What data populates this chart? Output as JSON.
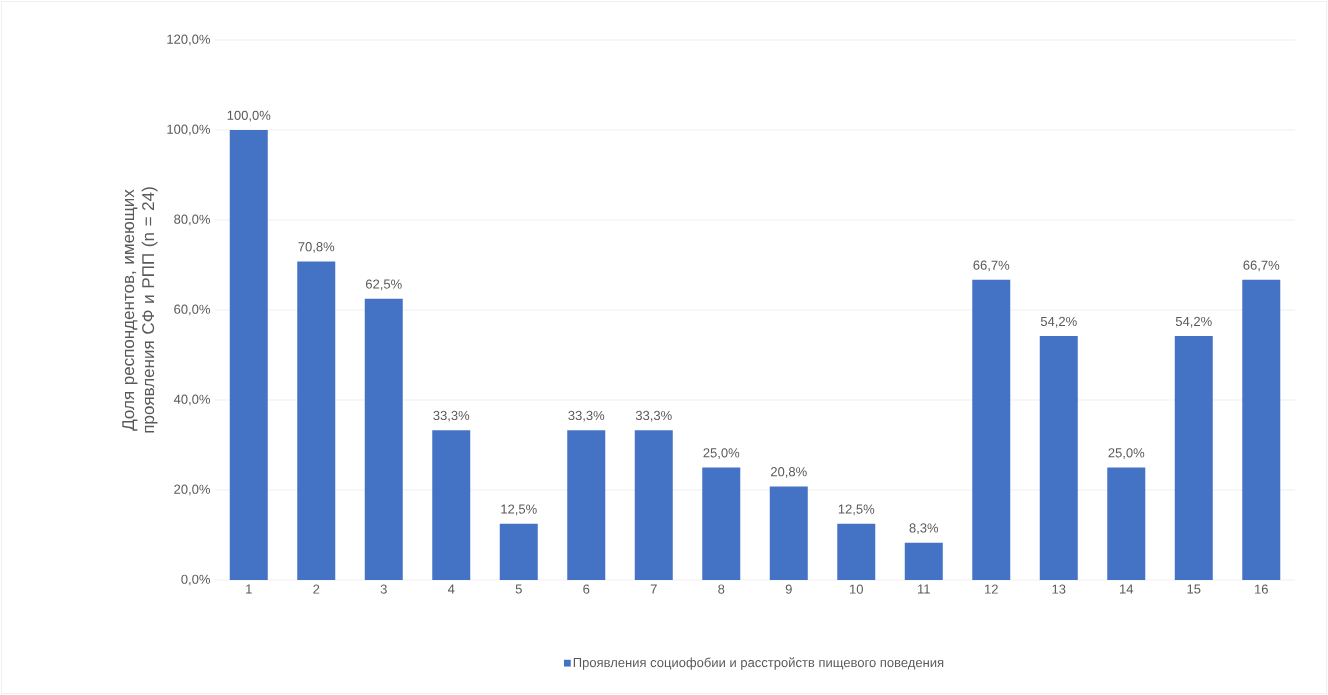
{
  "chart_data": {
    "type": "bar",
    "ylabel": "Доля респондентов, имеющих проявления СФ и РПП (n = 24)",
    "categories": [
      "1",
      "2",
      "3",
      "4",
      "5",
      "6",
      "7",
      "8",
      "9",
      "10",
      "11",
      "12",
      "13",
      "14",
      "15",
      "16"
    ],
    "series": [
      {
        "name": "Проявления социофобии и расстройств пищевого поведения",
        "color": "#4472c4",
        "values": [
          100.0,
          70.8,
          62.5,
          33.3,
          12.5,
          33.3,
          33.3,
          25.0,
          20.8,
          12.5,
          8.3,
          66.7,
          54.2,
          25.0,
          54.2,
          66.7
        ],
        "value_labels": [
          "100,0%",
          "70,8%",
          "62,5%",
          "33,3%",
          "12,5%",
          "33,3%",
          "33,3%",
          "25,0%",
          "20,8%",
          "12,5%",
          "8,3%",
          "66,7%",
          "54,2%",
          "25,0%",
          "54,2%",
          "66,7%"
        ]
      }
    ],
    "ylim": [
      0,
      120
    ],
    "yticks": [
      {
        "value": 0,
        "label": "0,0%"
      },
      {
        "value": 20,
        "label": "20,0%"
      },
      {
        "value": 40,
        "label": "40,0%"
      },
      {
        "value": 60,
        "label": "60,0%"
      },
      {
        "value": 80,
        "label": "80,0%"
      },
      {
        "value": 100,
        "label": "100,0%"
      },
      {
        "value": 120,
        "label": "120,0%"
      }
    ],
    "grid": "y",
    "legend": "bottom"
  }
}
